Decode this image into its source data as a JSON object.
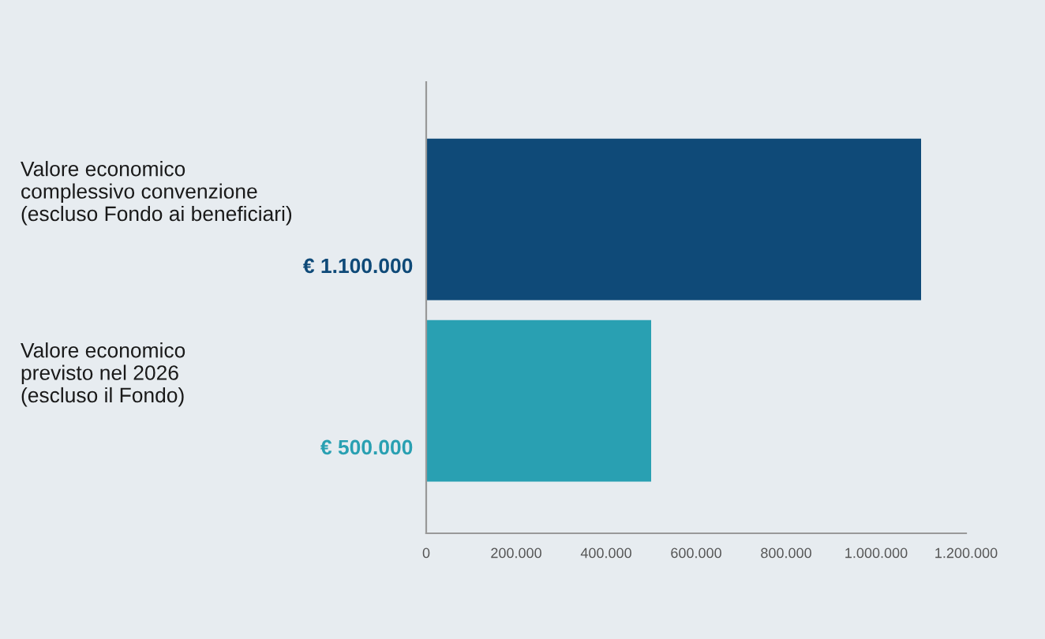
{
  "chart_data": {
    "type": "bar",
    "orientation": "horizontal",
    "categories": [
      "Valore economico\ncomplessivo convenzione\n(escluso Fondo ai beneficiari)",
      "Valore economico\nprevisto nel 2026\n(escluso il Fondo)"
    ],
    "values": [
      1100000,
      500000
    ],
    "colors": [
      "#0f4a78",
      "#29a0b2"
    ],
    "value_labels": [
      "€ 1.100.000",
      "€ 500.000"
    ],
    "xlim": [
      0,
      1200000
    ],
    "xticks": [
      0,
      {
        "value": 200000,
        "label": "200.000"
      },
      {
        "value": 400000,
        "label": "400.000"
      },
      {
        "value": 600000,
        "label": "600.000"
      },
      {
        "value": 800000,
        "label": "800.000"
      },
      {
        "value": 1000000,
        "label": "1.000.000"
      },
      {
        "value": 1200000,
        "label": "1.200.000"
      }
    ],
    "grid": false,
    "legend": false
  }
}
